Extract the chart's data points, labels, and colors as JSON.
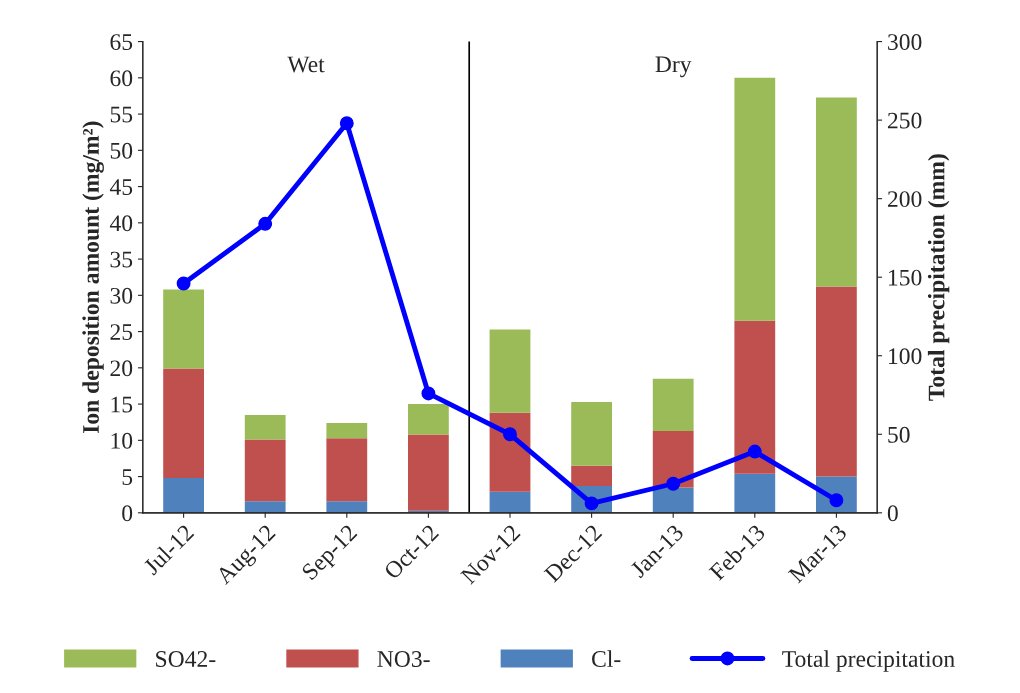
{
  "chart_data": {
    "type": "bar",
    "stacked": true,
    "categories": [
      "Jul-12",
      "Aug-12",
      "Sep-12",
      "Oct-12",
      "Nov-12",
      "Dec-12",
      "Jan-13",
      "Feb-13",
      "Mar-13"
    ],
    "ylabel": "Ion deposition amount (mg/m²)",
    "y2label": "Total precipitation (mm)",
    "ylim": [
      0,
      65
    ],
    "yticks": [
      0,
      5,
      10,
      15,
      20,
      25,
      30,
      35,
      40,
      45,
      50,
      55,
      60,
      65
    ],
    "y2lim": [
      0,
      300
    ],
    "y2ticks": [
      0,
      50,
      100,
      150,
      200,
      250,
      300
    ],
    "series": [
      {
        "name": "Cl-",
        "color": "#4f81bd",
        "values": [
          4.8,
          1.6,
          1.6,
          0.3,
          2.9,
          3.7,
          3.5,
          5.4,
          5.0
        ]
      },
      {
        "name": "NO3-",
        "color": "#c0504d",
        "values": [
          15.1,
          8.5,
          8.7,
          10.5,
          10.9,
          2.8,
          7.8,
          21.1,
          26.2
        ]
      },
      {
        "name": "SO42-",
        "color": "#9bbb59",
        "values": [
          10.9,
          3.4,
          2.1,
          4.2,
          11.5,
          8.8,
          7.2,
          33.5,
          26.1
        ]
      },
      {
        "name": "Total precipitation",
        "type": "line",
        "axis": "y2",
        "color": "#0000ff",
        "marker": "circle",
        "values": [
          146,
          184,
          248,
          76,
          50,
          6,
          18.5,
          39,
          8
        ]
      }
    ],
    "annotations": [
      "Wet",
      "Dry"
    ],
    "legend": "bottom",
    "grid": false
  }
}
